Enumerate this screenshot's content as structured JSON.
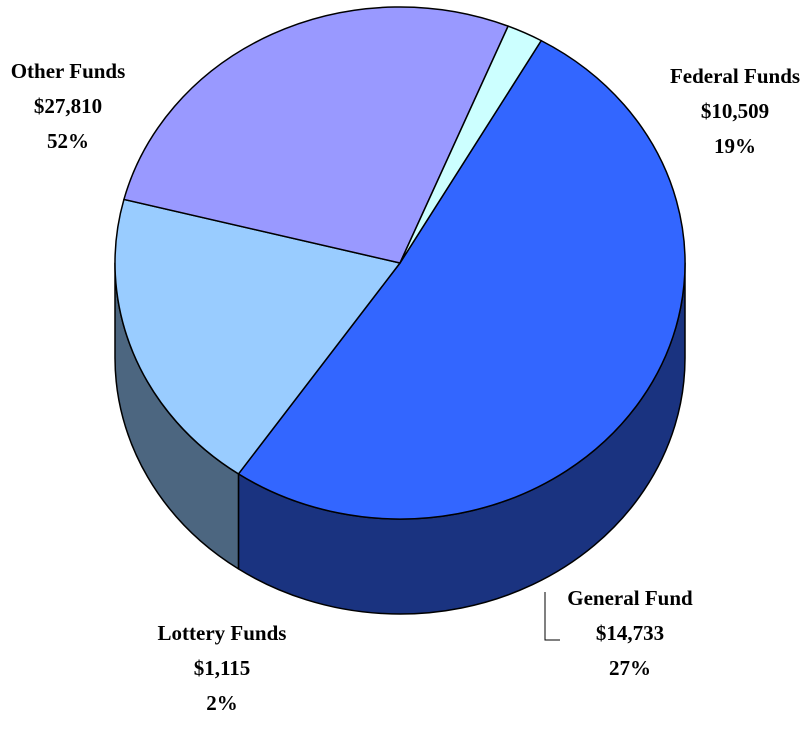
{
  "chart_data": {
    "type": "pie3d",
    "categories": [
      "Other Funds",
      "Federal Funds",
      "General Fund",
      "Lottery Funds"
    ],
    "values": [
      27810,
      10509,
      14733,
      1115
    ],
    "value_labels": [
      "$27,810",
      "$10,509",
      "$14,733",
      "$1,115"
    ],
    "percent_labels": [
      "52%",
      "19%",
      "27%",
      "2%"
    ],
    "colors": [
      "#3366ff",
      "#99ccff",
      "#9999ff",
      "#ccffff"
    ],
    "side_colors": [
      "#1a3380",
      "#4c6680",
      "#4c4c80",
      "#668080"
    ]
  }
}
